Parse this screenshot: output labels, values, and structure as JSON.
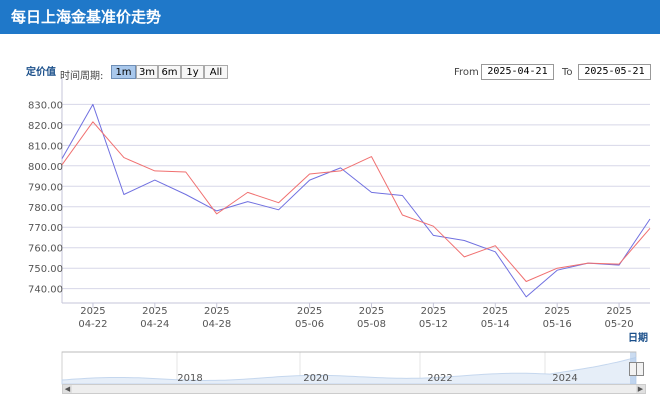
{
  "header": {
    "title": "每日上海金基准价走势"
  },
  "controls": {
    "period_label": "时间周期:",
    "ranges": [
      "1m",
      "3m",
      "6m",
      "1y",
      "All"
    ],
    "active_range": "1m",
    "from_label": "From",
    "from_value": "2025-04-21",
    "to_label": "To",
    "to_value": "2025-05-21"
  },
  "colors": {
    "header": "#1f78c9",
    "series_blue": "#7070e0",
    "series_red": "#f07070",
    "grid": "#d7d7e8"
  },
  "chart_data": {
    "type": "line",
    "ylabel": "定价值",
    "xlabel": "日期",
    "ylim": [
      733,
      838
    ],
    "yticks": [
      "830.00",
      "820.00",
      "810.00",
      "800.00",
      "790.00",
      "780.00",
      "770.00",
      "760.00",
      "750.00",
      "740.00"
    ],
    "x": [
      "2025-04-21",
      "2025-04-22",
      "2025-04-23",
      "2025-04-24",
      "2025-04-25",
      "2025-04-28",
      "2025-04-29",
      "2025-04-30",
      "2025-05-06",
      "2025-05-07",
      "2025-05-08",
      "2025-05-09",
      "2025-05-12",
      "2025-05-13",
      "2025-05-14",
      "2025-05-15",
      "2025-05-16",
      "2025-05-19",
      "2025-05-20",
      "2025-05-21"
    ],
    "x_tick_labels": [
      {
        "date": "2025-04-22",
        "year": "2025",
        "md": "04-22"
      },
      {
        "date": "2025-04-24",
        "year": "2025",
        "md": "04-24"
      },
      {
        "date": "2025-04-28",
        "year": "2025",
        "md": "04-28"
      },
      {
        "date": "2025-05-06",
        "year": "2025",
        "md": "05-06"
      },
      {
        "date": "2025-05-08",
        "year": "2025",
        "md": "05-08"
      },
      {
        "date": "2025-05-12",
        "year": "2025",
        "md": "05-12"
      },
      {
        "date": "2025-05-14",
        "year": "2025",
        "md": "05-14"
      },
      {
        "date": "2025-05-16",
        "year": "2025",
        "md": "05-16"
      },
      {
        "date": "2025-05-20",
        "year": "2025",
        "md": "05-20"
      }
    ],
    "series": [
      {
        "color": "#7070e0",
        "values": [
          803.5,
          830.0,
          786.0,
          793.0,
          786.0,
          778.0,
          782.5,
          778.5,
          793.0,
          799.0,
          787.0,
          785.5,
          766.0,
          763.5,
          758.0,
          736.0,
          749.0,
          752.5,
          751.5,
          774.0
        ]
      },
      {
        "color": "#f07070",
        "values": [
          800.5,
          821.5,
          804.0,
          797.5,
          797.0,
          776.5,
          787.0,
          782.0,
          796.0,
          797.5,
          804.5,
          776.0,
          770.5,
          755.5,
          761.0,
          743.5,
          750.0,
          752.5,
          752.0,
          769.5
        ]
      }
    ],
    "grid": true,
    "navigator": {
      "year_labels": [
        "2018",
        "2020",
        "2022",
        "2024"
      ]
    }
  }
}
